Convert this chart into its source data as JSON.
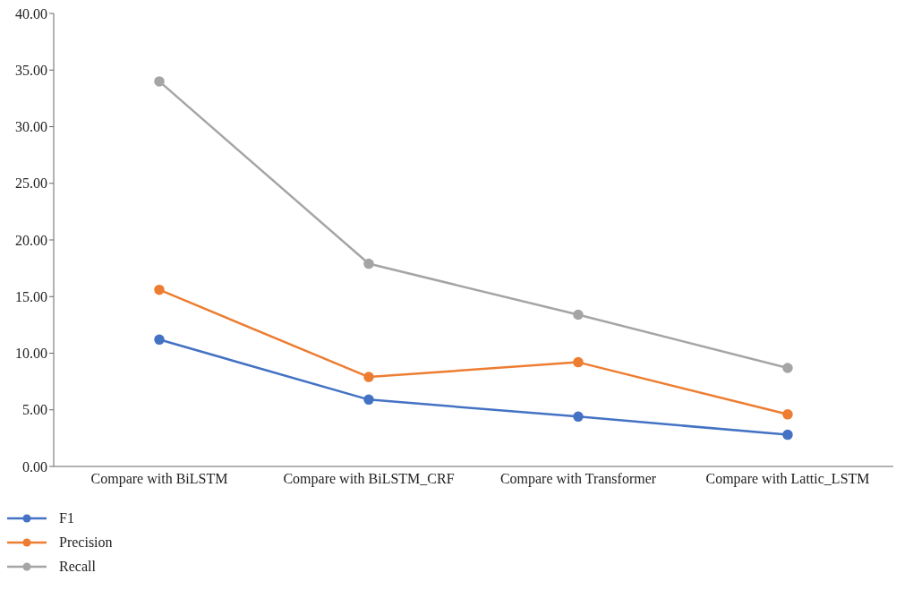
{
  "chart_data": {
    "type": "line",
    "categories": [
      "Compare with BiLSTM",
      "Compare with BiLSTM_CRF",
      "Compare with Transformer",
      "Compare with Lattic_LSTM"
    ],
    "series": [
      {
        "name": "F1",
        "color": "#4472c4",
        "values": [
          11.2,
          5.9,
          4.4,
          2.8
        ]
      },
      {
        "name": "Precision",
        "color": "#ed7d31",
        "values": [
          15.6,
          7.9,
          9.2,
          4.6
        ]
      },
      {
        "name": "Recall",
        "color": "#a5a5a5",
        "values": [
          34.0,
          17.9,
          13.4,
          8.7
        ]
      }
    ],
    "ylim": [
      0,
      40
    ],
    "yticks": [
      {
        "value": 0,
        "label": "0.00"
      },
      {
        "value": 5,
        "label": "5.00"
      },
      {
        "value": 10,
        "label": "10.00"
      },
      {
        "value": 15,
        "label": "15.00"
      },
      {
        "value": 20,
        "label": "20.00"
      },
      {
        "value": 25,
        "label": "25.00"
      },
      {
        "value": 30,
        "label": "30.00"
      },
      {
        "value": 35,
        "label": "35.00"
      },
      {
        "value": 40,
        "label": "40.00"
      }
    ],
    "grid": false,
    "legend": "bottom left",
    "marker": "circle",
    "line_style": "solid"
  }
}
